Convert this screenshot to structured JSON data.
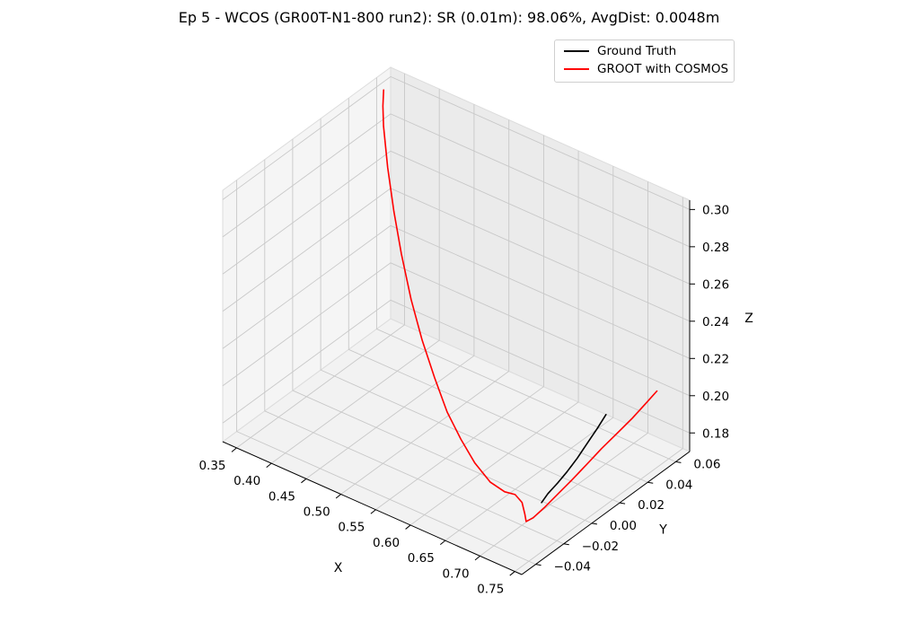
{
  "chart_data": {
    "type": "line",
    "projection": "3d",
    "title": "Ep 5 - WCOS (GR00T-N1-800 run2): SR (0.01m): 98.06%, AvgDist: 0.0048m",
    "xlabel": "X",
    "ylabel": "Y",
    "zlabel": "Z",
    "xticks": [
      "0.35",
      "0.40",
      "0.45",
      "0.50",
      "0.55",
      "0.60",
      "0.65",
      "0.70",
      "0.75"
    ],
    "yticks": [
      "−0.04",
      "−0.02",
      "0.00",
      "0.02",
      "0.04",
      "0.06"
    ],
    "zticks": [
      "0.18",
      "0.20",
      "0.22",
      "0.24",
      "0.26",
      "0.28",
      "0.30"
    ],
    "xlim": [
      0.33,
      0.76
    ],
    "ylim": [
      -0.05,
      0.07
    ],
    "zlim": [
      0.17,
      0.305
    ],
    "grid": true,
    "legend_position": "upper right",
    "series": [
      {
        "name": "Ground Truth",
        "color": "#000000",
        "points": [
          {
            "x": 0.708,
            "y": -0.01,
            "z": 0.178
          },
          {
            "x": 0.705,
            "y": -0.004,
            "z": 0.179
          },
          {
            "x": 0.703,
            "y": 0.004,
            "z": 0.18
          },
          {
            "x": 0.7,
            "y": 0.012,
            "z": 0.181
          },
          {
            "x": 0.697,
            "y": 0.021,
            "z": 0.183
          },
          {
            "x": 0.694,
            "y": 0.03,
            "z": 0.186
          },
          {
            "x": 0.692,
            "y": 0.038,
            "z": 0.189
          },
          {
            "x": 0.69,
            "y": 0.045,
            "z": 0.192
          }
        ]
      },
      {
        "name": "GROOT with COSMOS",
        "color": "#ff0000",
        "points": [
          {
            "x": 0.34,
            "y": 0.06,
            "z": 0.3
          },
          {
            "x": 0.343,
            "y": 0.058,
            "z": 0.293
          },
          {
            "x": 0.35,
            "y": 0.055,
            "z": 0.285
          },
          {
            "x": 0.37,
            "y": 0.048,
            "z": 0.27
          },
          {
            "x": 0.395,
            "y": 0.04,
            "z": 0.255
          },
          {
            "x": 0.42,
            "y": 0.033,
            "z": 0.24
          },
          {
            "x": 0.45,
            "y": 0.025,
            "z": 0.225
          },
          {
            "x": 0.48,
            "y": 0.018,
            "z": 0.212
          },
          {
            "x": 0.51,
            "y": 0.012,
            "z": 0.2
          },
          {
            "x": 0.54,
            "y": 0.006,
            "z": 0.19
          },
          {
            "x": 0.57,
            "y": 0.001,
            "z": 0.183
          },
          {
            "x": 0.6,
            "y": -0.004,
            "z": 0.178
          },
          {
            "x": 0.63,
            "y": -0.008,
            "z": 0.175
          },
          {
            "x": 0.655,
            "y": -0.01,
            "z": 0.175
          },
          {
            "x": 0.67,
            "y": -0.01,
            "z": 0.176
          },
          {
            "x": 0.688,
            "y": -0.014,
            "z": 0.177
          },
          {
            "x": 0.7,
            "y": -0.018,
            "z": 0.175
          },
          {
            "x": 0.706,
            "y": -0.02,
            "z": 0.173
          },
          {
            "x": 0.71,
            "y": -0.017,
            "z": 0.174
          },
          {
            "x": 0.712,
            "y": -0.01,
            "z": 0.176
          },
          {
            "x": 0.712,
            "y": 0.0,
            "z": 0.178
          },
          {
            "x": 0.712,
            "y": 0.01,
            "z": 0.18
          },
          {
            "x": 0.713,
            "y": 0.02,
            "z": 0.183
          },
          {
            "x": 0.714,
            "y": 0.03,
            "z": 0.186
          },
          {
            "x": 0.716,
            "y": 0.04,
            "z": 0.189
          },
          {
            "x": 0.718,
            "y": 0.05,
            "z": 0.192
          },
          {
            "x": 0.721,
            "y": 0.058,
            "z": 0.196
          },
          {
            "x": 0.725,
            "y": 0.064,
            "z": 0.2
          }
        ]
      }
    ]
  }
}
